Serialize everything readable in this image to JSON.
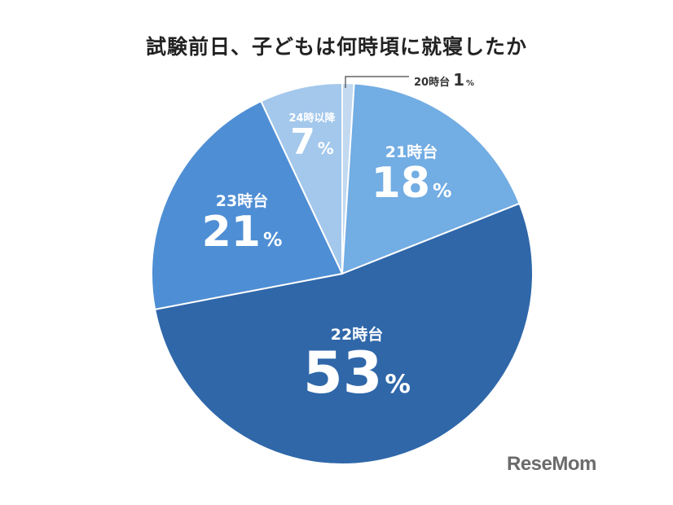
{
  "chart_data": {
    "type": "pie",
    "title": "試験前日、子どもは何時頃に就寝したか",
    "start": "12 o'clock, clockwise",
    "slices": [
      {
        "label": "20時台",
        "value": 1,
        "unit": "%",
        "color": "#c2d9f0"
      },
      {
        "label": "21時台",
        "value": 18,
        "unit": "%",
        "color": "#72ade3"
      },
      {
        "label": "22時台",
        "value": 53,
        "unit": "%",
        "color": "#2f67a9"
      },
      {
        "label": "23時台",
        "value": 21,
        "unit": "%",
        "color": "#4e8ed4"
      },
      {
        "label": "24時以降",
        "value": 7,
        "unit": "%",
        "color": "#a3c8ec"
      }
    ]
  },
  "logo": "ReseMom"
}
